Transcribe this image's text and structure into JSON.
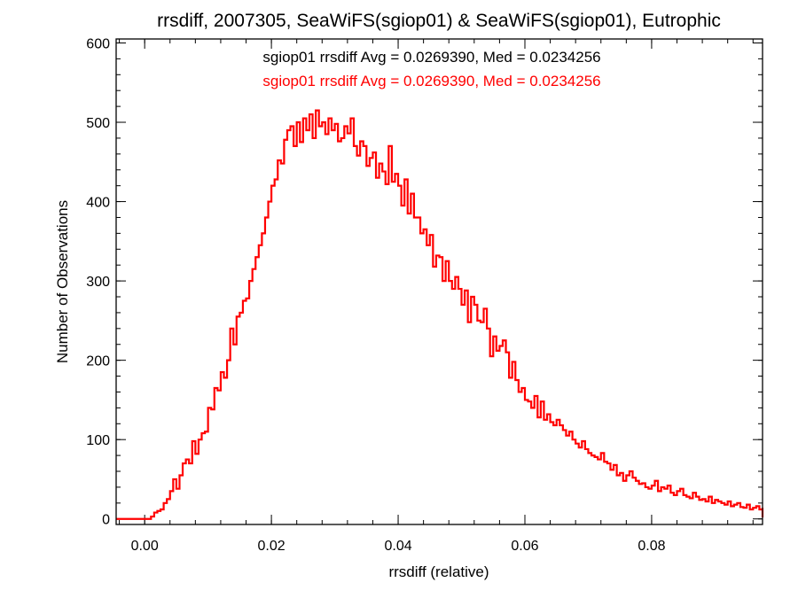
{
  "chart_data": {
    "type": "line",
    "title": "rrsdiff, 2007305, SeaWiFS(sgiop01) & SeaWiFS(sgiop01), Eutrophic",
    "xlabel": "rrsdiff (relative)",
    "ylabel": "Number of Observations",
    "xlim": [
      -0.0045,
      0.0975
    ],
    "ylim": [
      -7,
      605
    ],
    "x_ticks": [
      0.0,
      0.02,
      0.04,
      0.06,
      0.08
    ],
    "x_tick_labels": [
      "0.00",
      "0.02",
      "0.04",
      "0.06",
      "0.08"
    ],
    "y_ticks": [
      0,
      100,
      200,
      300,
      400,
      500,
      600
    ],
    "y_tick_labels": [
      "0",
      "100",
      "200",
      "300",
      "400",
      "500",
      "600"
    ],
    "x_minor_step": 0.004,
    "y_minor_step": 20,
    "grid": false,
    "step": true,
    "bin_width": 0.0005,
    "annotations": [
      {
        "text": "sgiop01 rrsdiff Avg = 0.0269390, Med = 0.0234256",
        "color": "#000000"
      },
      {
        "text": "sgiop01 rrsdiff Avg = 0.0269390, Med = 0.0234256",
        "color": "#ff0000"
      }
    ],
    "series": [
      {
        "color": "#ff0000",
        "x0": -0.0045,
        "values": [
          0,
          0,
          0,
          0,
          0,
          0,
          0,
          0,
          0,
          0,
          0,
          3,
          8,
          10,
          12,
          20,
          25,
          35,
          50,
          38,
          55,
          70,
          75,
          70,
          98,
          82,
          100,
          108,
          110,
          140,
          138,
          165,
          162,
          185,
          178,
          200,
          240,
          220,
          255,
          260,
          275,
          278,
          300,
          315,
          330,
          345,
          360,
          380,
          400,
          420,
          428,
          452,
          448,
          478,
          490,
          495,
          470,
          500,
          475,
          505,
          490,
          510,
          480,
          515,
          495,
          500,
          485,
          505,
          490,
          498,
          476,
          480,
          495,
          486,
          505,
          470,
          458,
          476,
          470,
          445,
          455,
          462,
          430,
          448,
          438,
          422,
          470,
          425,
          435,
          420,
          395,
          428,
          385,
          410,
          380,
          380,
          360,
          365,
          345,
          358,
          318,
          332,
          330,
          300,
          325,
          300,
          290,
          305,
          290,
          270,
          288,
          248,
          280,
          270,
          250,
          248,
          265,
          240,
          205,
          230,
          212,
          218,
          225,
          210,
          178,
          198,
          175,
          160,
          165,
          150,
          148,
          140,
          155,
          128,
          148,
          125,
          132,
          122,
          118,
          125,
          118,
          112,
          105,
          110,
          100,
          95,
          90,
          98,
          88,
          83,
          80,
          78,
          75,
          83,
          72,
          70,
          62,
          68,
          55,
          58,
          48,
          55,
          60,
          52,
          48,
          44,
          45,
          40,
          38,
          42,
          48,
          35,
          40,
          38,
          42,
          33,
          30,
          35,
          38,
          30,
          28,
          26,
          33,
          28,
          24,
          25,
          22,
          28,
          20,
          24,
          22,
          20,
          18,
          22,
          16,
          18,
          20,
          15,
          14,
          18,
          12,
          14,
          16,
          12,
          10,
          14,
          12,
          10,
          8,
          12,
          9,
          10,
          8,
          7,
          9,
          8,
          6,
          10,
          8,
          7,
          5,
          8,
          6,
          5,
          9,
          7,
          6,
          5,
          4,
          7,
          5,
          6,
          4,
          5,
          3,
          6,
          4,
          5,
          3,
          4,
          2,
          3,
          5,
          2
        ]
      }
    ]
  }
}
